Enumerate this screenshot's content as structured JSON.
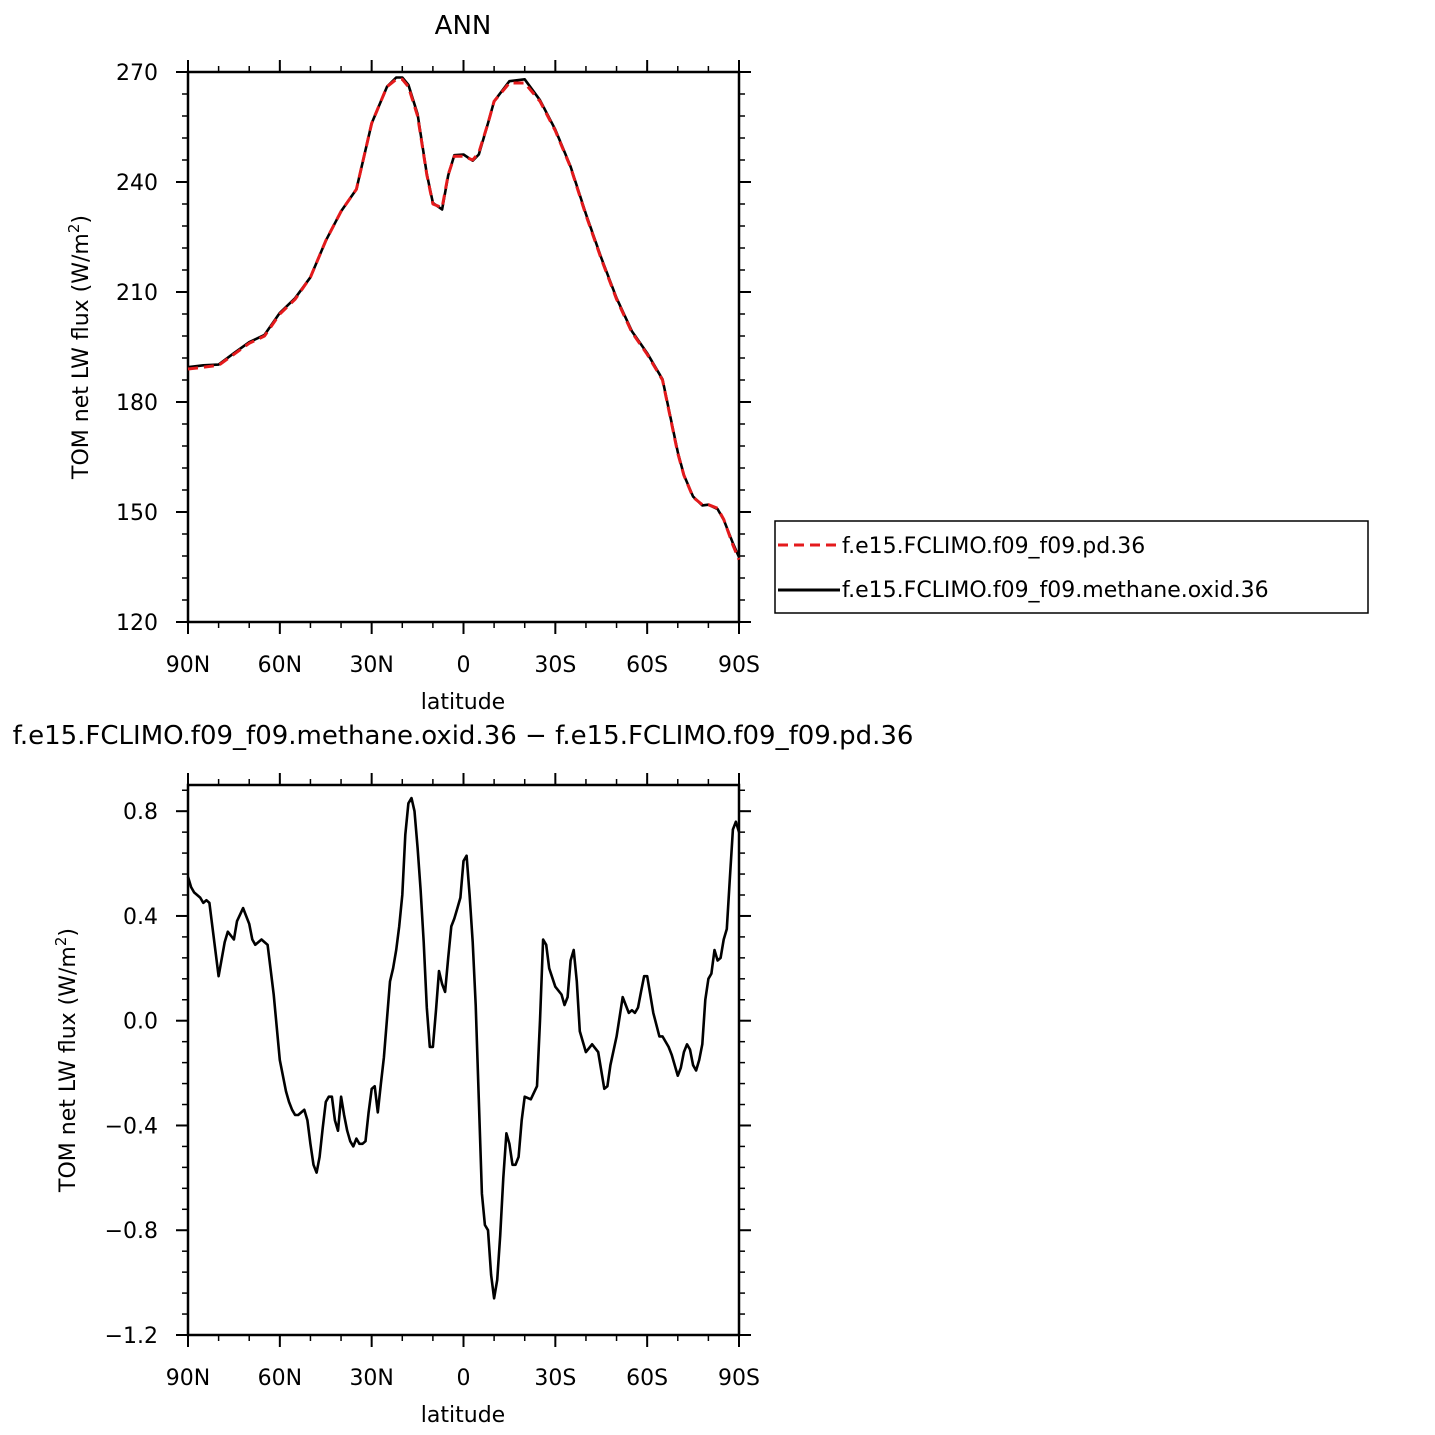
{
  "chart_data": [
    {
      "type": "line",
      "title": "ANN",
      "xlabel": "latitude",
      "ylabel": "TOM net LW flux (W/m²)",
      "ylabel_main": "TOM net LW flux (W/m",
      "ylabel_sup": "2",
      "ylabel_close": ")",
      "xlim": [
        90,
        -90
      ],
      "ylim": [
        120,
        270
      ],
      "x_ticks": [
        90,
        60,
        30,
        0,
        -30,
        -60,
        -90
      ],
      "x_tick_labels": [
        "90N",
        "60N",
        "30N",
        "0",
        "30S",
        "60S",
        "90S"
      ],
      "y_ticks": [
        120,
        150,
        180,
        210,
        240,
        270
      ],
      "y_tick_labels": [
        "120",
        "150",
        "180",
        "210",
        "240",
        "270"
      ],
      "legend": "right",
      "series": [
        {
          "name": "f.e15.FCLIMO.f09_f09.pd.36",
          "color": "#e41a1c",
          "dash": "dashed",
          "x": [
            90,
            85,
            80,
            75,
            70,
            65,
            60,
            55,
            50,
            45,
            40,
            35,
            30,
            25,
            22,
            20,
            18,
            15,
            12,
            10,
            7,
            5,
            3,
            0,
            -3,
            -5,
            -8,
            -10,
            -15,
            -20,
            -25,
            -30,
            -35,
            -40,
            -45,
            -50,
            -55,
            -60,
            -65,
            -70,
            -72,
            -75,
            -78,
            -80,
            -83,
            -85,
            -88,
            -90
          ],
          "y": [
            189,
            189.5,
            190,
            193,
            196,
            198,
            204,
            208,
            214,
            224,
            232,
            238,
            256,
            266,
            268,
            268,
            266,
            258,
            242,
            234,
            233,
            242,
            247,
            247,
            246,
            248,
            256,
            262,
            267,
            267,
            262,
            254,
            244,
            231,
            219,
            208,
            199,
            193,
            186,
            166,
            160,
            154,
            152,
            152,
            151,
            148,
            141,
            137
          ]
        },
        {
          "name": "f.e15.FCLIMO.f09_f09.methane.oxid.36",
          "color": "#000000",
          "dash": "solid",
          "x": [
            90,
            85,
            80,
            75,
            70,
            65,
            60,
            55,
            50,
            45,
            40,
            35,
            30,
            25,
            22,
            20,
            18,
            15,
            12,
            10,
            7,
            5,
            3,
            0,
            -3,
            -5,
            -8,
            -10,
            -15,
            -20,
            -25,
            -30,
            -35,
            -40,
            -45,
            -50,
            -55,
            -60,
            -65,
            -70,
            -72,
            -75,
            -78,
            -80,
            -83,
            -85,
            -88,
            -90
          ],
          "y": [
            189.5,
            190,
            190.2,
            193.3,
            196.3,
            198.3,
            204.3,
            208.3,
            214,
            224,
            232,
            238,
            256,
            266,
            268.5,
            268.5,
            266.5,
            258.5,
            242.2,
            234.3,
            232.5,
            241.8,
            247.3,
            247.5,
            245.8,
            247.5,
            256,
            262,
            267.5,
            268,
            262.3,
            254.3,
            244.2,
            231.3,
            219.3,
            208.3,
            199.3,
            193.3,
            186.2,
            166.3,
            160.1,
            154.2,
            151.8,
            152,
            150.8,
            147.9,
            141.5,
            137.7
          ]
        }
      ]
    },
    {
      "type": "line",
      "title": "f.e15.FCLIMO.f09_f09.methane.oxid.36 − f.e15.FCLIMO.f09_f09.pd.36",
      "xlabel": "latitude",
      "ylabel": "TOM net LW flux (W/m²)",
      "ylabel_main": "TOM net LW flux (W/m",
      "ylabel_sup": "2",
      "ylabel_close": ")",
      "xlim": [
        90,
        -90
      ],
      "ylim": [
        -1.2,
        0.9
      ],
      "x_ticks": [
        90,
        60,
        30,
        0,
        -30,
        -60,
        -90
      ],
      "x_tick_labels": [
        "90N",
        "60N",
        "30N",
        "0",
        "30S",
        "60S",
        "90S"
      ],
      "y_ticks": [
        -1.2,
        -0.8,
        -0.4,
        0.0,
        0.4,
        0.8
      ],
      "y_tick_labels": [
        "−1.2",
        "−0.8",
        "−0.4",
        "0.0",
        "0.4",
        "0.8"
      ],
      "series": [
        {
          "name": "",
          "color": "#000000",
          "dash": "solid",
          "x": [
            90,
            89,
            88,
            86,
            85,
            84,
            83,
            80,
            78,
            77,
            75,
            74,
            72,
            70,
            69,
            68,
            66,
            65,
            64,
            62,
            60,
            58,
            57,
            56,
            55,
            54,
            52,
            51,
            50,
            49,
            48,
            47,
            46,
            45,
            44,
            43,
            42,
            41,
            40,
            39,
            38,
            37,
            36,
            35,
            34,
            33,
            32,
            31,
            30,
            29,
            28,
            27,
            26,
            24,
            23,
            22,
            21,
            20,
            19,
            18,
            17,
            16,
            15,
            14,
            13,
            12,
            11,
            10,
            9,
            8,
            7,
            6,
            5,
            4,
            3,
            2,
            1,
            0,
            -1,
            -2,
            -3,
            -4,
            -5,
            -6,
            -7,
            -8,
            -9,
            -10,
            -11,
            -12,
            -13,
            -14,
            -15,
            -16,
            -17,
            -18,
            -19,
            -20,
            -22,
            -24,
            -25,
            -26,
            -27,
            -28,
            -30,
            -32,
            -33,
            -34,
            -35,
            -36,
            -37,
            -38,
            -40,
            -42,
            -44,
            -46,
            -47,
            -48,
            -50,
            -52,
            -54,
            -55,
            -56,
            -57,
            -58,
            -59,
            -60,
            -62,
            -64,
            -65,
            -67,
            -68,
            -70,
            -71,
            -72,
            -73,
            -74,
            -75,
            -76,
            -77,
            -78,
            -79,
            -80,
            -81,
            -82,
            -83,
            -84,
            -85,
            -86,
            -87,
            -88,
            -89,
            -90
          ],
          "y": [
            0.55,
            0.51,
            0.49,
            0.47,
            0.45,
            0.46,
            0.45,
            0.17,
            0.3,
            0.34,
            0.31,
            0.38,
            0.43,
            0.37,
            0.31,
            0.29,
            0.31,
            0.3,
            0.29,
            0.1,
            -0.15,
            -0.27,
            -0.31,
            -0.34,
            -0.36,
            -0.36,
            -0.34,
            -0.38,
            -0.47,
            -0.55,
            -0.58,
            -0.52,
            -0.41,
            -0.31,
            -0.29,
            -0.29,
            -0.38,
            -0.42,
            -0.29,
            -0.36,
            -0.42,
            -0.46,
            -0.48,
            -0.45,
            -0.47,
            -0.47,
            -0.46,
            -0.35,
            -0.26,
            -0.25,
            -0.35,
            -0.24,
            -0.14,
            0.15,
            0.2,
            0.27,
            0.36,
            0.48,
            0.71,
            0.83,
            0.85,
            0.8,
            0.66,
            0.5,
            0.3,
            0.05,
            -0.1,
            -0.1,
            0.04,
            0.19,
            0.14,
            0.11,
            0.24,
            0.36,
            0.39,
            0.43,
            0.47,
            0.61,
            0.63,
            0.48,
            0.3,
            0.06,
            -0.3,
            -0.66,
            -0.78,
            -0.8,
            -0.97,
            -1.06,
            -0.99,
            -0.82,
            -0.6,
            -0.43,
            -0.47,
            -0.55,
            -0.55,
            -0.52,
            -0.38,
            -0.29,
            -0.3,
            -0.25,
            0.0,
            0.31,
            0.29,
            0.2,
            0.13,
            0.1,
            0.06,
            0.09,
            0.23,
            0.27,
            0.15,
            -0.04,
            -0.12,
            -0.09,
            -0.12,
            -0.26,
            -0.25,
            -0.17,
            -0.06,
            0.09,
            0.03,
            0.04,
            0.03,
            0.05,
            0.11,
            0.17,
            0.17,
            0.03,
            -0.06,
            -0.06,
            -0.1,
            -0.13,
            -0.21,
            -0.18,
            -0.12,
            -0.09,
            -0.11,
            -0.17,
            -0.19,
            -0.15,
            -0.09,
            0.08,
            0.16,
            0.18,
            0.27,
            0.23,
            0.24,
            0.31,
            0.35,
            0.54,
            0.73,
            0.76,
            0.72
          ]
        }
      ]
    }
  ]
}
